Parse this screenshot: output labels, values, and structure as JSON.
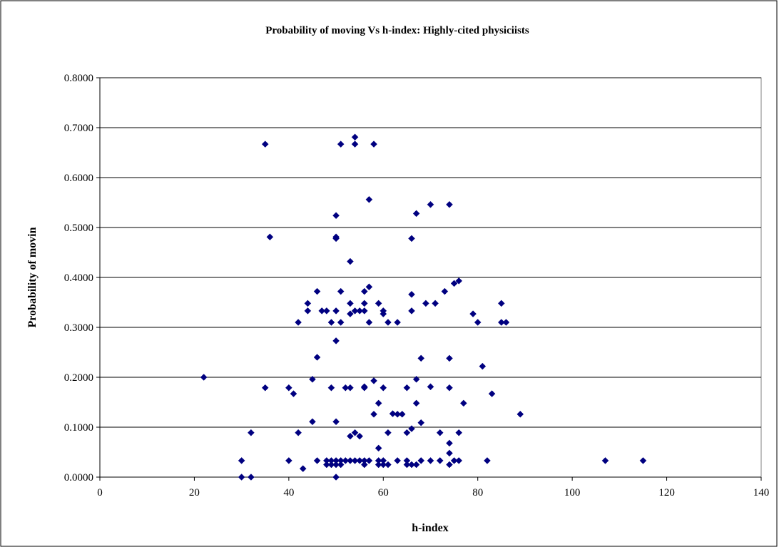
{
  "chart_data": {
    "type": "scatter",
    "title": "Probability of moving Vs h-index: Highly-cited physiciists",
    "xlabel": "h-index",
    "ylabel": "Probability of movin",
    "xlim": [
      0,
      140
    ],
    "ylim": [
      0,
      0.8
    ],
    "x_ticks": [
      "0",
      "20",
      "40",
      "60",
      "80",
      "100",
      "120",
      "140"
    ],
    "y_ticks": [
      "0.0000",
      "0.1000",
      "0.2000",
      "0.3000",
      "0.4000",
      "0.5000",
      "0.6000",
      "0.7000",
      "0.8000"
    ],
    "grid": "horizontal",
    "legend": "none",
    "marker": "diamond",
    "marker_color": "#000080",
    "series": [
      {
        "points": [
          [
            22,
            0.2
          ],
          [
            30,
            0.033
          ],
          [
            30,
            0.0
          ],
          [
            32,
            0.0
          ],
          [
            32,
            0.089
          ],
          [
            35,
            0.667
          ],
          [
            35,
            0.179
          ],
          [
            36,
            0.481
          ],
          [
            40,
            0.179
          ],
          [
            40,
            0.033
          ],
          [
            41,
            0.167
          ],
          [
            42,
            0.31
          ],
          [
            42,
            0.089
          ],
          [
            43,
            0.017
          ],
          [
            44,
            0.348
          ],
          [
            44,
            0.333
          ],
          [
            45,
            0.196
          ],
          [
            45,
            0.111
          ],
          [
            46,
            0.372
          ],
          [
            46,
            0.24
          ],
          [
            46,
            0.033
          ],
          [
            47,
            0.333
          ],
          [
            48,
            0.333
          ],
          [
            48,
            0.033
          ],
          [
            48,
            0.025
          ],
          [
            49,
            0.31
          ],
          [
            49,
            0.179
          ],
          [
            49,
            0.033
          ],
          [
            49,
            0.025
          ],
          [
            50,
            0.524
          ],
          [
            50,
            0.481
          ],
          [
            50,
            0.478
          ],
          [
            50,
            0.333
          ],
          [
            50,
            0.273
          ],
          [
            50,
            0.111
          ],
          [
            50,
            0.033
          ],
          [
            50,
            0.025
          ],
          [
            50,
            0.0
          ],
          [
            51,
            0.667
          ],
          [
            51,
            0.372
          ],
          [
            51,
            0.31
          ],
          [
            51,
            0.033
          ],
          [
            51,
            0.025
          ],
          [
            52,
            0.179
          ],
          [
            52,
            0.033
          ],
          [
            53,
            0.432
          ],
          [
            53,
            0.348
          ],
          [
            53,
            0.327
          ],
          [
            53,
            0.179
          ],
          [
            53,
            0.082
          ],
          [
            53,
            0.033
          ],
          [
            54,
            0.681
          ],
          [
            54,
            0.667
          ],
          [
            54,
            0.333
          ],
          [
            54,
            0.089
          ],
          [
            54,
            0.033
          ],
          [
            55,
            0.333
          ],
          [
            55,
            0.082
          ],
          [
            55,
            0.033
          ],
          [
            56,
            0.372
          ],
          [
            56,
            0.348
          ],
          [
            56,
            0.333
          ],
          [
            56,
            0.181
          ],
          [
            56,
            0.179
          ],
          [
            56,
            0.033
          ],
          [
            56,
            0.025
          ],
          [
            57,
            0.556
          ],
          [
            57,
            0.381
          ],
          [
            57,
            0.31
          ],
          [
            57,
            0.033
          ],
          [
            58,
            0.667
          ],
          [
            58,
            0.193
          ],
          [
            58,
            0.126
          ],
          [
            59,
            0.348
          ],
          [
            59,
            0.148
          ],
          [
            59,
            0.058
          ],
          [
            59,
            0.033
          ],
          [
            59,
            0.025
          ],
          [
            60,
            0.333
          ],
          [
            60,
            0.327
          ],
          [
            60,
            0.179
          ],
          [
            60,
            0.033
          ],
          [
            60,
            0.025
          ],
          [
            61,
            0.31
          ],
          [
            61,
            0.089
          ],
          [
            61,
            0.025
          ],
          [
            62,
            0.127
          ],
          [
            63,
            0.31
          ],
          [
            63,
            0.126
          ],
          [
            63,
            0.033
          ],
          [
            64,
            0.126
          ],
          [
            65,
            0.179
          ],
          [
            65,
            0.089
          ],
          [
            65,
            0.033
          ],
          [
            65,
            0.025
          ],
          [
            66,
            0.478
          ],
          [
            66,
            0.366
          ],
          [
            66,
            0.333
          ],
          [
            66,
            0.097
          ],
          [
            66,
            0.025
          ],
          [
            67,
            0.528
          ],
          [
            67,
            0.196
          ],
          [
            67,
            0.148
          ],
          [
            67,
            0.025
          ],
          [
            68,
            0.238
          ],
          [
            68,
            0.109
          ],
          [
            68,
            0.033
          ],
          [
            69,
            0.348
          ],
          [
            70,
            0.546
          ],
          [
            70,
            0.181
          ],
          [
            70,
            0.033
          ],
          [
            71,
            0.348
          ],
          [
            72,
            0.089
          ],
          [
            72,
            0.033
          ],
          [
            73,
            0.372
          ],
          [
            74,
            0.546
          ],
          [
            74,
            0.238
          ],
          [
            74,
            0.179
          ],
          [
            74,
            0.068
          ],
          [
            74,
            0.048
          ],
          [
            74,
            0.025
          ],
          [
            75,
            0.388
          ],
          [
            75,
            0.033
          ],
          [
            76,
            0.393
          ],
          [
            76,
            0.089
          ],
          [
            76,
            0.033
          ],
          [
            77,
            0.148
          ],
          [
            79,
            0.327
          ],
          [
            80,
            0.31
          ],
          [
            81,
            0.222
          ],
          [
            82,
            0.033
          ],
          [
            83,
            0.167
          ],
          [
            85,
            0.348
          ],
          [
            85,
            0.31
          ],
          [
            86,
            0.31
          ],
          [
            89,
            0.126
          ],
          [
            107,
            0.033
          ],
          [
            115,
            0.033
          ]
        ]
      }
    ]
  }
}
